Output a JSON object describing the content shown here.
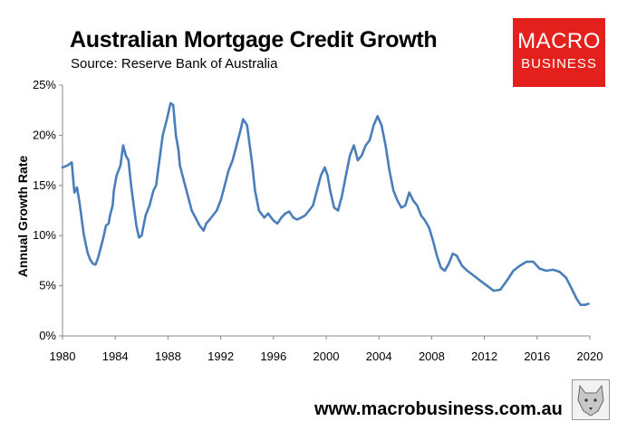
{
  "header": {
    "title": "Australian Mortgage Credit Growth",
    "subtitle": "Source: Reserve Bank of Australia"
  },
  "logo": {
    "line1": "MACRO",
    "line2": "BUSINESS",
    "color": "#e3201b"
  },
  "footer": {
    "url": "www.macrobusiness.com.au"
  },
  "chart_data": {
    "type": "line",
    "title": "Australian Mortgage Credit Growth",
    "subtitle": "Source: Reserve Bank of Australia",
    "ylabel": "Annual Growth Rate",
    "xlabel": "",
    "xlim": [
      1980,
      2020
    ],
    "ylim": [
      0,
      25
    ],
    "x_ticks": [
      1980,
      1984,
      1988,
      1992,
      1996,
      2000,
      2004,
      2008,
      2012,
      2016,
      2020
    ],
    "x_tick_labels": [
      "1980",
      "1984",
      "1988",
      "1992",
      "1996",
      "2000",
      "2004",
      "2008",
      "2012",
      "2016",
      "2020"
    ],
    "y_ticks": [
      0,
      5,
      10,
      15,
      20,
      25
    ],
    "y_tick_labels": [
      "0%",
      "5%",
      "10%",
      "15%",
      "20%",
      "25%"
    ],
    "grid": false,
    "line_color": "#4a7ebb",
    "series": [
      {
        "x": [
          1980.0,
          1980.4,
          1980.7,
          1980.9,
          1981.1,
          1981.3,
          1981.6,
          1981.9,
          1982.1,
          1982.3,
          1982.5,
          1982.7,
          1982.9,
          1983.1,
          1983.3,
          1983.5,
          1983.6,
          1983.8,
          1983.9,
          1984.1,
          1984.4,
          1984.6,
          1984.8,
          1985.0,
          1985.2,
          1985.4,
          1985.6,
          1985.8,
          1986.0,
          1986.3,
          1986.6,
          1986.9,
          1987.1,
          1987.3,
          1987.6,
          1987.9,
          1988.2,
          1988.4,
          1988.6,
          1988.8,
          1988.9,
          1989.1,
          1989.3,
          1989.6,
          1989.8,
          1990.0,
          1990.4,
          1990.7,
          1990.9,
          1991.1,
          1991.4,
          1991.7,
          1992.0,
          1992.3,
          1992.6,
          1992.9,
          1993.2,
          1993.5,
          1993.7,
          1994.0,
          1994.2,
          1994.4,
          1994.6,
          1994.9,
          1995.3,
          1995.6,
          1996.0,
          1996.3,
          1996.6,
          1996.9,
          1997.2,
          1997.5,
          1997.8,
          1998.1,
          1998.4,
          1998.7,
          1999.0,
          1999.3,
          1999.6,
          1999.9,
          2000.1,
          2000.3,
          2000.6,
          2000.9,
          2001.2,
          2001.5,
          2001.8,
          2002.1,
          2002.4,
          2002.7,
          2003.0,
          2003.3,
          2003.6,
          2003.9,
          2004.2,
          2004.5,
          2004.8,
          2005.1,
          2005.4,
          2005.7,
          2006.0,
          2006.3,
          2006.6,
          2006.9,
          2007.2,
          2007.5,
          2007.8,
          2008.1,
          2008.4,
          2008.7,
          2009.0,
          2009.3,
          2009.6,
          2009.9,
          2010.3,
          2010.7,
          2011.2,
          2011.7,
          2012.2,
          2012.7,
          2013.2,
          2013.7,
          2014.2,
          2014.7,
          2015.2,
          2015.7,
          2016.2,
          2016.7,
          2017.2,
          2017.7,
          2018.2,
          2018.7,
          2019.0,
          2019.3,
          2019.6,
          2019.9
        ],
        "values": [
          16.8,
          17.0,
          17.3,
          14.3,
          14.8,
          13.2,
          10.2,
          8.3,
          7.6,
          7.2,
          7.1,
          7.8,
          8.8,
          9.8,
          11.0,
          11.2,
          12.0,
          13.0,
          14.5,
          16.0,
          17.0,
          19.0,
          18.0,
          17.5,
          15.0,
          13.0,
          11.0,
          9.8,
          10.0,
          12.0,
          13.0,
          14.5,
          15.0,
          17.0,
          20.0,
          21.5,
          23.2,
          23.0,
          20.0,
          18.5,
          17.0,
          16.0,
          15.0,
          13.5,
          12.5,
          12.0,
          11.0,
          10.5,
          11.2,
          11.5,
          12.0,
          12.5,
          13.5,
          15.0,
          16.5,
          17.5,
          19.0,
          20.5,
          21.6,
          21.0,
          19.0,
          17.0,
          14.5,
          12.5,
          11.8,
          12.2,
          11.5,
          11.2,
          11.8,
          12.2,
          12.4,
          11.8,
          11.6,
          11.8,
          12.0,
          12.5,
          13.0,
          14.5,
          16.0,
          16.8,
          16.0,
          14.5,
          12.8,
          12.5,
          14.0,
          16.0,
          18.0,
          19.0,
          17.5,
          18.0,
          19.0,
          19.5,
          21.0,
          21.9,
          21.0,
          19.0,
          16.5,
          14.5,
          13.5,
          12.8,
          13.0,
          14.3,
          13.5,
          13.0,
          12.0,
          11.5,
          10.8,
          9.5,
          8.0,
          6.8,
          6.5,
          7.2,
          8.2,
          8.0,
          7.0,
          6.5,
          6.0,
          5.5,
          5.0,
          4.5,
          4.6,
          5.5,
          6.5,
          7.0,
          7.4,
          7.4,
          6.7,
          6.5,
          6.6,
          6.4,
          5.8,
          4.5,
          3.7,
          3.1,
          3.1,
          3.2
        ]
      }
    ]
  }
}
